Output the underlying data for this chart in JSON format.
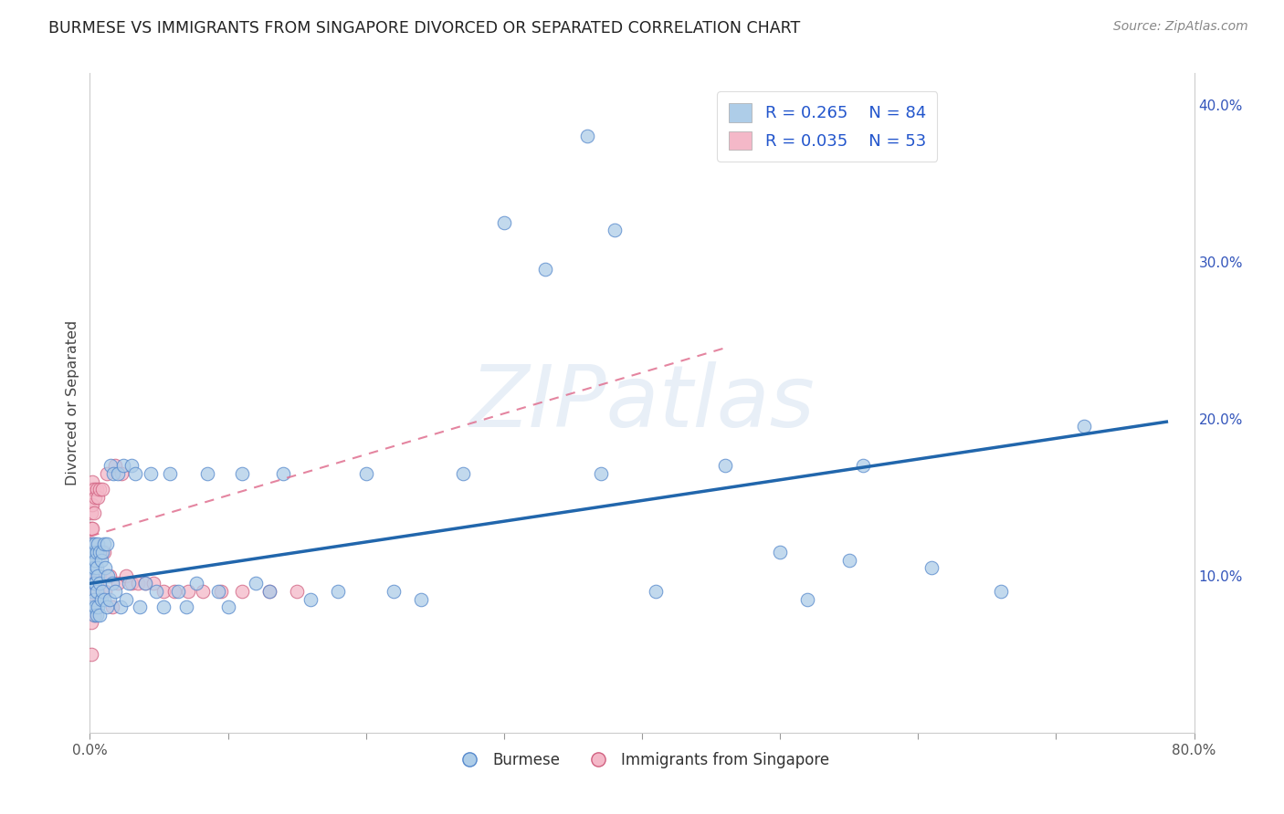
{
  "title": "BURMESE VS IMMIGRANTS FROM SINGAPORE DIVORCED OR SEPARATED CORRELATION CHART",
  "source": "Source: ZipAtlas.com",
  "ylabel": "Divorced or Separated",
  "xlim": [
    0.0,
    0.8
  ],
  "ylim": [
    0.0,
    0.42
  ],
  "legend_blue_r": "0.265",
  "legend_blue_n": "84",
  "legend_pink_r": "0.035",
  "legend_pink_n": "53",
  "legend_label_blue": "Burmese",
  "legend_label_pink": "Immigrants from Singapore",
  "blue_color": "#aecde8",
  "pink_color": "#f4b8c8",
  "line_blue_color": "#2166ac",
  "line_pink_color": "#e07090",
  "watermark": "ZIPatlas",
  "blue_line_x0": 0.0,
  "blue_line_y0": 0.095,
  "blue_line_x1": 0.78,
  "blue_line_y1": 0.198,
  "pink_line_x0": 0.0,
  "pink_line_y0": 0.125,
  "pink_line_x1": 0.46,
  "pink_line_y1": 0.245,
  "blue_x": [
    0.001,
    0.001,
    0.002,
    0.002,
    0.002,
    0.002,
    0.002,
    0.003,
    0.003,
    0.003,
    0.003,
    0.003,
    0.004,
    0.004,
    0.004,
    0.004,
    0.005,
    0.005,
    0.005,
    0.005,
    0.006,
    0.006,
    0.006,
    0.007,
    0.007,
    0.007,
    0.008,
    0.008,
    0.009,
    0.009,
    0.01,
    0.01,
    0.011,
    0.012,
    0.012,
    0.013,
    0.014,
    0.015,
    0.016,
    0.017,
    0.018,
    0.02,
    0.022,
    0.024,
    0.026,
    0.028,
    0.03,
    0.033,
    0.036,
    0.04,
    0.044,
    0.048,
    0.053,
    0.058,
    0.064,
    0.07,
    0.077,
    0.085,
    0.093,
    0.1,
    0.11,
    0.12,
    0.13,
    0.14,
    0.16,
    0.18,
    0.2,
    0.22,
    0.24,
    0.27,
    0.3,
    0.33,
    0.37,
    0.41,
    0.46,
    0.52,
    0.56,
    0.61,
    0.66,
    0.72,
    0.36,
    0.38,
    0.5,
    0.55
  ],
  "blue_y": [
    0.115,
    0.105,
    0.12,
    0.11,
    0.1,
    0.09,
    0.08,
    0.115,
    0.105,
    0.095,
    0.085,
    0.075,
    0.12,
    0.11,
    0.095,
    0.08,
    0.115,
    0.105,
    0.09,
    0.075,
    0.12,
    0.1,
    0.08,
    0.115,
    0.095,
    0.075,
    0.11,
    0.085,
    0.115,
    0.09,
    0.12,
    0.085,
    0.105,
    0.12,
    0.08,
    0.1,
    0.085,
    0.17,
    0.095,
    0.165,
    0.09,
    0.165,
    0.08,
    0.17,
    0.085,
    0.095,
    0.17,
    0.165,
    0.08,
    0.095,
    0.165,
    0.09,
    0.08,
    0.165,
    0.09,
    0.08,
    0.095,
    0.165,
    0.09,
    0.08,
    0.165,
    0.095,
    0.09,
    0.165,
    0.085,
    0.09,
    0.165,
    0.09,
    0.085,
    0.165,
    0.325,
    0.295,
    0.165,
    0.09,
    0.17,
    0.085,
    0.17,
    0.105,
    0.09,
    0.195,
    0.38,
    0.32,
    0.115,
    0.11
  ],
  "pink_x": [
    0.001,
    0.001,
    0.001,
    0.001,
    0.001,
    0.001,
    0.001,
    0.001,
    0.001,
    0.001,
    0.001,
    0.002,
    0.002,
    0.002,
    0.002,
    0.002,
    0.002,
    0.003,
    0.003,
    0.003,
    0.003,
    0.004,
    0.004,
    0.004,
    0.005,
    0.005,
    0.006,
    0.006,
    0.007,
    0.007,
    0.008,
    0.009,
    0.01,
    0.011,
    0.012,
    0.014,
    0.016,
    0.018,
    0.02,
    0.023,
    0.026,
    0.03,
    0.035,
    0.04,
    0.046,
    0.053,
    0.061,
    0.071,
    0.082,
    0.095,
    0.11,
    0.13,
    0.15
  ],
  "pink_y": [
    0.155,
    0.145,
    0.14,
    0.13,
    0.12,
    0.115,
    0.105,
    0.095,
    0.085,
    0.07,
    0.05,
    0.16,
    0.145,
    0.13,
    0.115,
    0.1,
    0.08,
    0.155,
    0.14,
    0.12,
    0.095,
    0.15,
    0.115,
    0.075,
    0.155,
    0.095,
    0.15,
    0.09,
    0.155,
    0.1,
    0.115,
    0.155,
    0.115,
    0.09,
    0.165,
    0.1,
    0.08,
    0.17,
    0.095,
    0.165,
    0.1,
    0.095,
    0.095,
    0.095,
    0.095,
    0.09,
    0.09,
    0.09,
    0.09,
    0.09,
    0.09,
    0.09,
    0.09
  ]
}
